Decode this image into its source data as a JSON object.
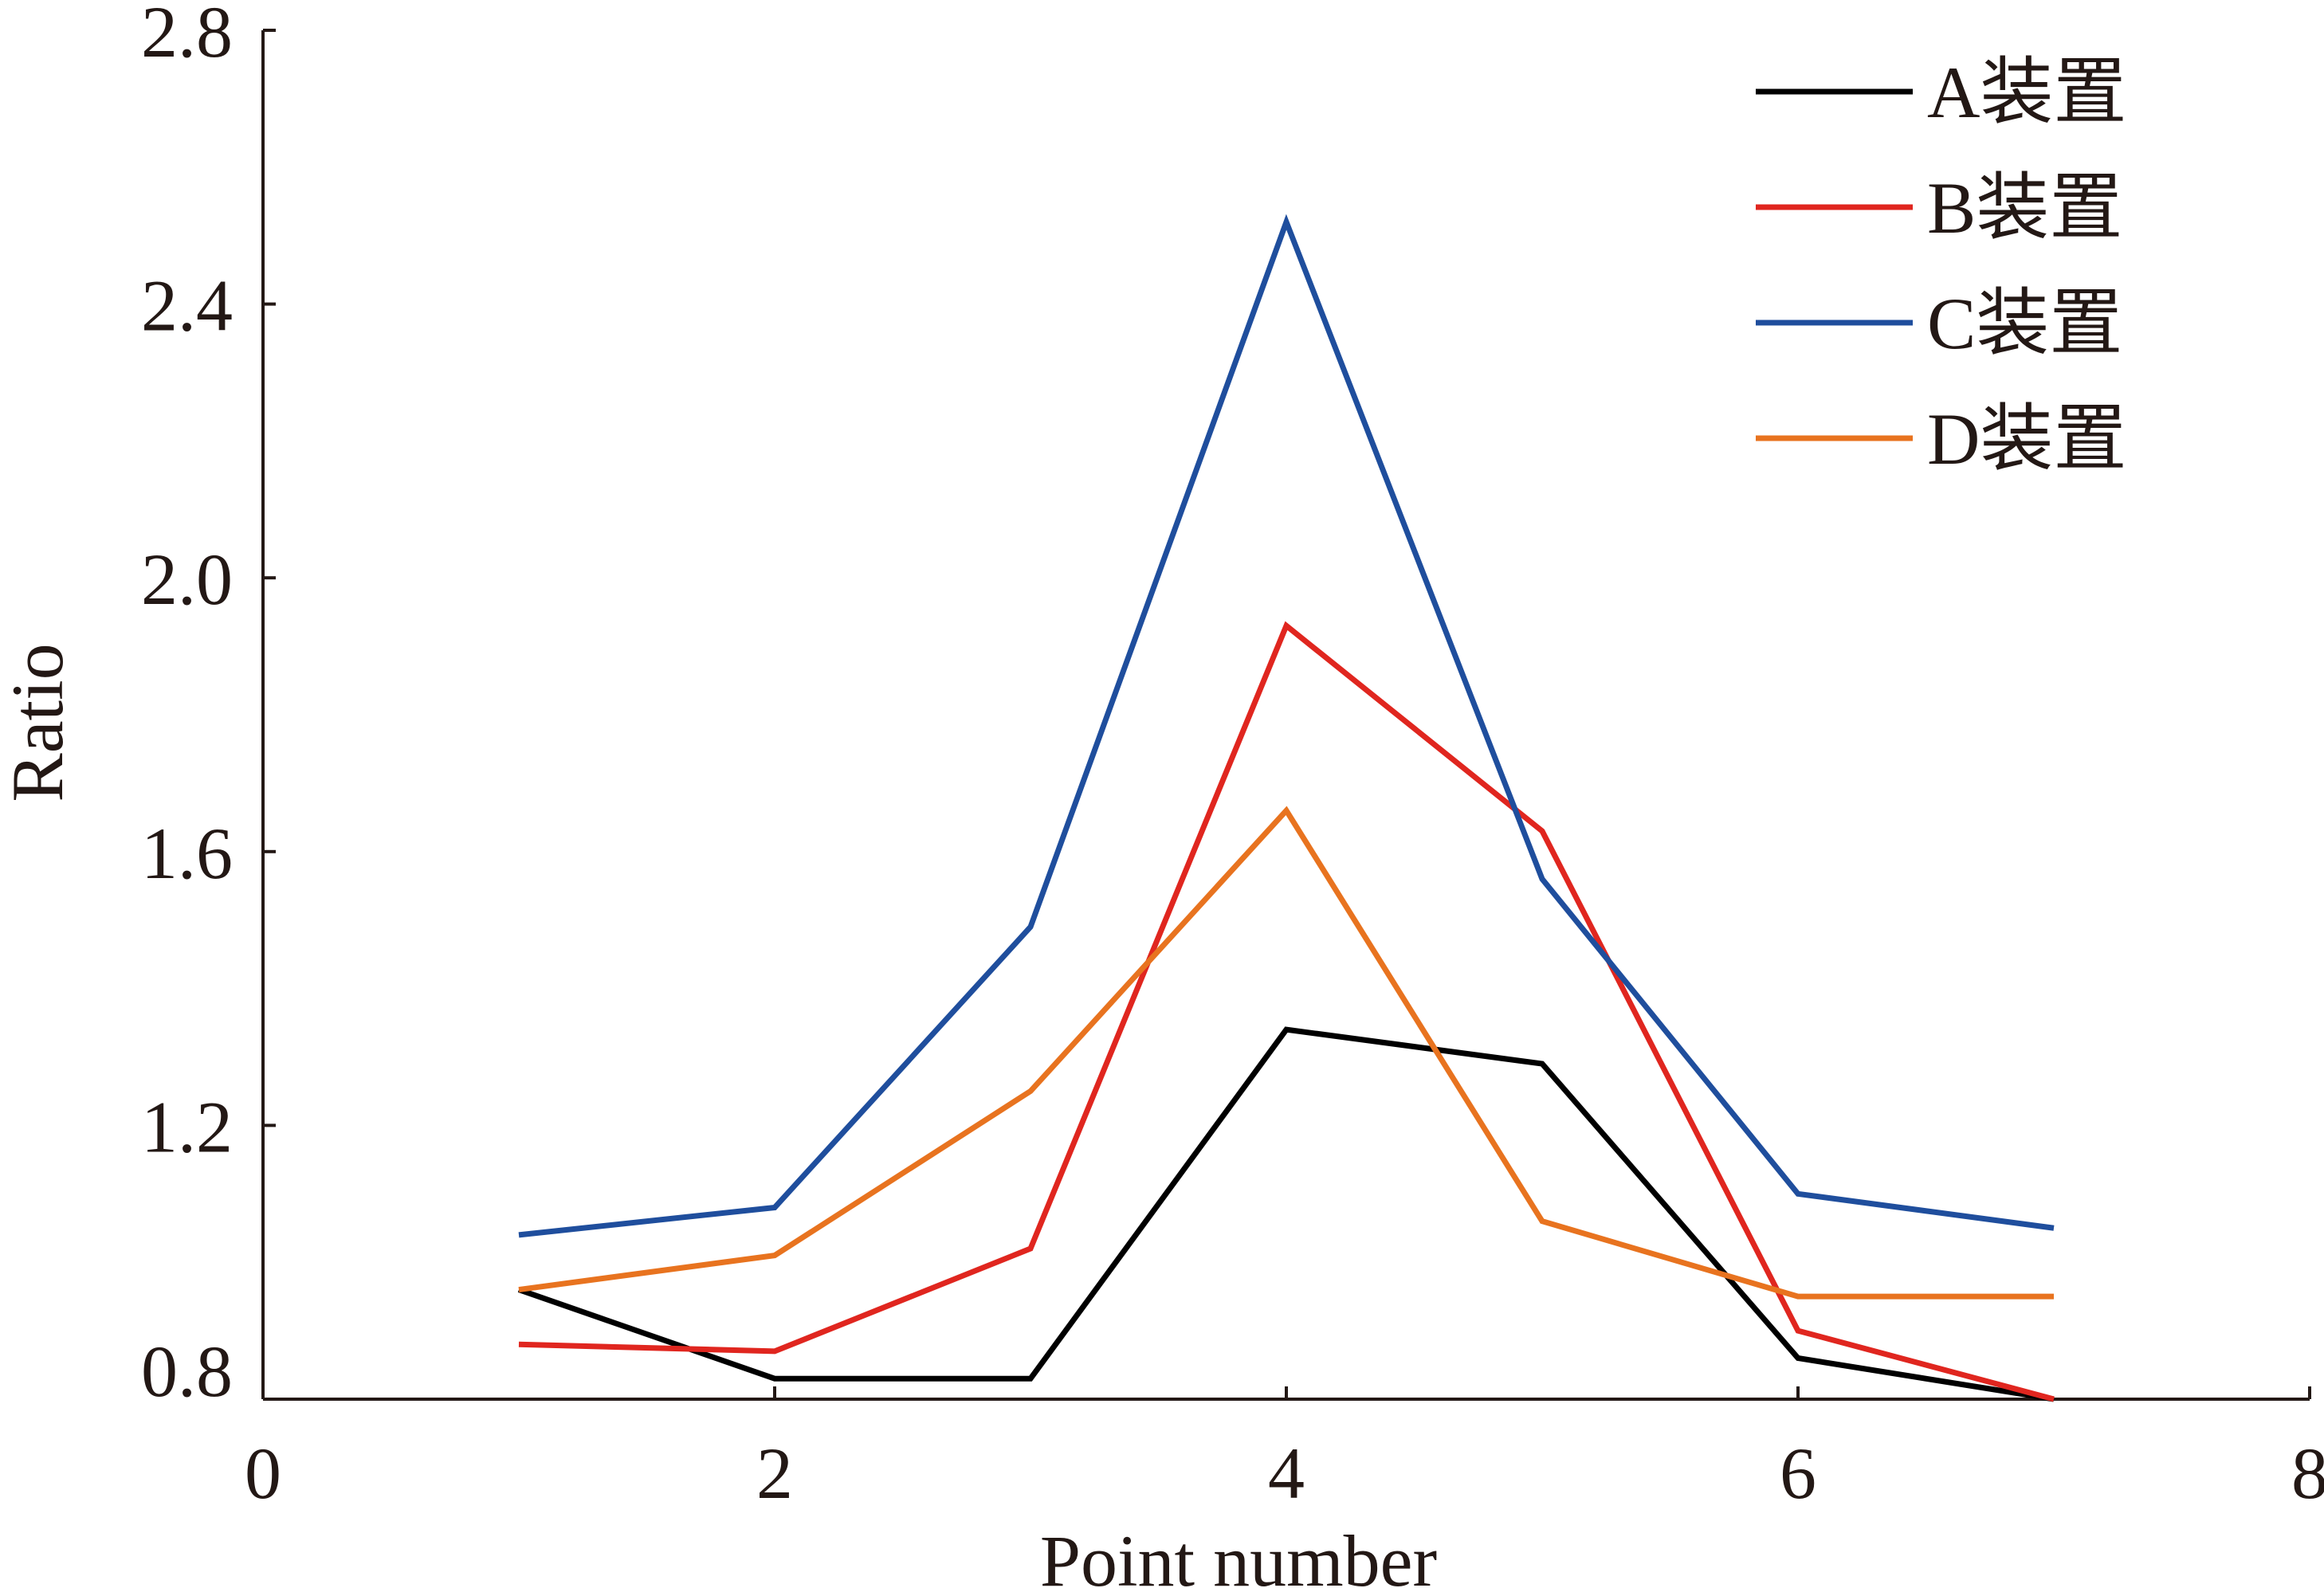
{
  "chart_data": {
    "type": "line",
    "title": "",
    "xlabel": "Point number",
    "ylabel": "Ratio",
    "xlim": [
      0,
      8
    ],
    "ylim": [
      0.8,
      2.8
    ],
    "x_ticks": [
      "0",
      "2",
      "4",
      "6",
      "8"
    ],
    "y_ticks": [
      "0.8",
      "1.2",
      "1.6",
      "2.0",
      "2.4",
      "2.8"
    ],
    "grid": false,
    "legend_position": "top-right",
    "x": [
      1,
      2,
      3,
      4,
      5,
      6,
      7
    ],
    "series": [
      {
        "name": "A装置",
        "color": "#000000",
        "values": [
          0.96,
          0.83,
          0.83,
          1.34,
          1.29,
          0.86,
          0.8
        ]
      },
      {
        "name": "B装置",
        "color": "#e0261f",
        "values": [
          0.88,
          0.87,
          1.02,
          1.93,
          1.63,
          0.9,
          0.8
        ]
      },
      {
        "name": "C装置",
        "color": "#1f4e9d",
        "values": [
          1.04,
          1.08,
          1.49,
          2.52,
          1.56,
          1.1,
          1.05
        ]
      },
      {
        "name": "D装置",
        "color": "#e8731f",
        "values": [
          0.96,
          1.01,
          1.25,
          1.66,
          1.06,
          0.95,
          0.95
        ]
      }
    ]
  }
}
